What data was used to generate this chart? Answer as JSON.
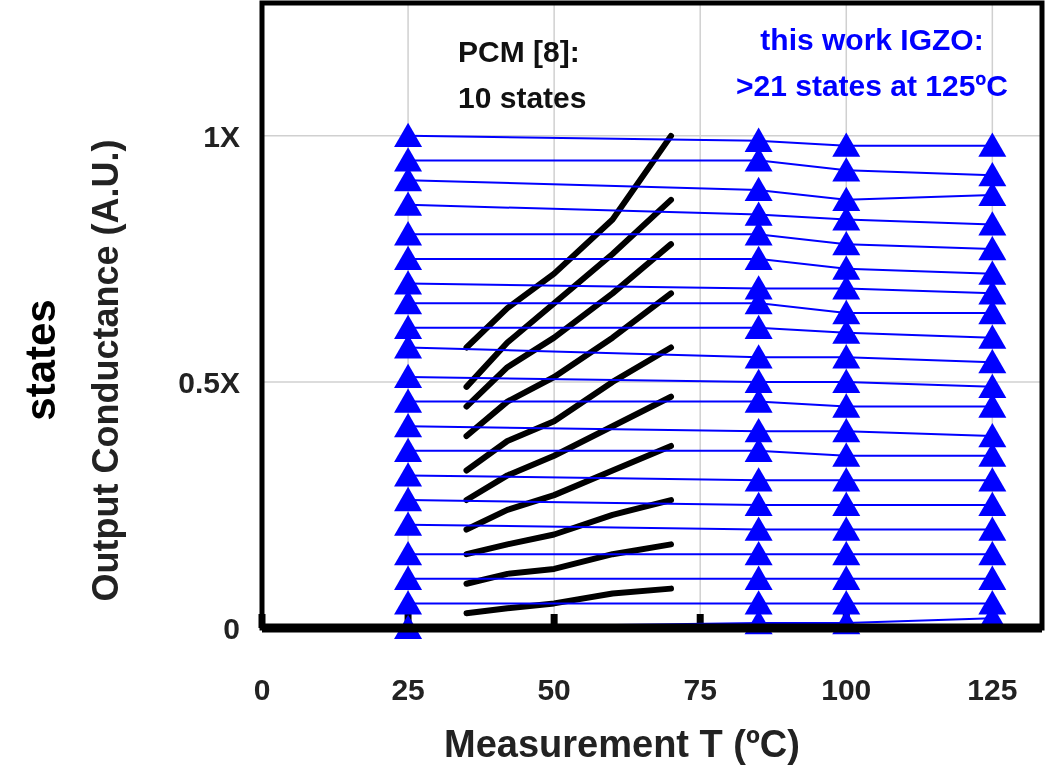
{
  "chart_data": {
    "type": "line",
    "xlabel": "Measurement T (ºC)",
    "ylabel": "Output Conductance (A.U.)",
    "annotations": [
      "PCM [8]:\n10 states",
      "this work IGZO:\n>21 states at 125ºC",
      "states"
    ],
    "xlim": [
      0,
      133.5
    ],
    "xticks": [
      0,
      25,
      50,
      75,
      100,
      125
    ],
    "ylim": [
      0,
      1.27
    ],
    "yticks": [
      0,
      {
        "value": 0.5,
        "label": "0.5X"
      },
      {
        "value": 1,
        "label": "1X"
      }
    ],
    "grid": true,
    "x": [
      25,
      85,
      100,
      125
    ],
    "series": [
      {
        "marker": "triangle",
        "color": "#0000ff",
        "values": [
          1.0,
          0.99,
          0.98,
          0.98
        ]
      },
      {
        "marker": "triangle",
        "color": "#0000ff",
        "values": [
          0.95,
          0.95,
          0.93,
          0.92
        ]
      },
      {
        "marker": "triangle",
        "color": "#0000ff",
        "values": [
          0.91,
          0.89,
          0.87,
          0.88
        ]
      },
      {
        "marker": "triangle",
        "color": "#0000ff",
        "values": [
          0.86,
          0.84,
          0.83,
          0.82
        ]
      },
      {
        "marker": "triangle",
        "color": "#0000ff",
        "values": [
          0.8,
          0.8,
          0.78,
          0.77
        ]
      },
      {
        "marker": "triangle",
        "color": "#0000ff",
        "values": [
          0.75,
          0.75,
          0.73,
          0.72
        ]
      },
      {
        "marker": "triangle",
        "color": "#0000ff",
        "values": [
          0.7,
          0.69,
          0.69,
          0.68
        ]
      },
      {
        "marker": "triangle",
        "color": "#0000ff",
        "values": [
          0.66,
          0.66,
          0.64,
          0.64
        ]
      },
      {
        "marker": "triangle",
        "color": "#0000ff",
        "values": [
          0.61,
          0.61,
          0.6,
          0.59
        ]
      },
      {
        "marker": "triangle",
        "color": "#0000ff",
        "values": [
          0.57,
          0.55,
          0.55,
          0.54
        ]
      },
      {
        "marker": "triangle",
        "color": "#0000ff",
        "values": [
          0.51,
          0.5,
          0.5,
          0.49
        ]
      },
      {
        "marker": "triangle",
        "color": "#0000ff",
        "values": [
          0.46,
          0.46,
          0.45,
          0.45
        ]
      },
      {
        "marker": "triangle",
        "color": "#0000ff",
        "values": [
          0.41,
          0.4,
          0.4,
          0.39
        ]
      },
      {
        "marker": "triangle",
        "color": "#0000ff",
        "values": [
          0.36,
          0.36,
          0.35,
          0.35
        ]
      },
      {
        "marker": "triangle",
        "color": "#0000ff",
        "values": [
          0.31,
          0.3,
          0.3,
          0.3
        ]
      },
      {
        "marker": "triangle",
        "color": "#0000ff",
        "values": [
          0.26,
          0.25,
          0.25,
          0.25
        ]
      },
      {
        "marker": "triangle",
        "color": "#0000ff",
        "values": [
          0.21,
          0.2,
          0.2,
          0.2
        ]
      },
      {
        "marker": "triangle",
        "color": "#0000ff",
        "values": [
          0.15,
          0.15,
          0.15,
          0.15
        ]
      },
      {
        "marker": "triangle",
        "color": "#0000ff",
        "values": [
          0.1,
          0.1,
          0.1,
          0.1
        ]
      },
      {
        "marker": "triangle",
        "color": "#0000ff",
        "values": [
          0.05,
          0.05,
          0.05,
          0.05
        ]
      },
      {
        "marker": "triangle",
        "color": "#0000ff",
        "values": [
          0.0,
          0.01,
          0.01,
          0.02
        ]
      },
      {
        "marker": "none",
        "color": "#000000",
        "x": [
          35,
          42,
          50,
          60,
          70
        ],
        "values": [
          0.57,
          0.65,
          0.72,
          0.83,
          1.0
        ]
      },
      {
        "marker": "none",
        "color": "#000000",
        "x": [
          35,
          42,
          50,
          60,
          70
        ],
        "values": [
          0.49,
          0.58,
          0.66,
          0.76,
          0.87
        ]
      },
      {
        "marker": "none",
        "color": "#000000",
        "x": [
          35,
          42,
          50,
          60,
          70
        ],
        "values": [
          0.45,
          0.53,
          0.59,
          0.68,
          0.78
        ]
      },
      {
        "marker": "none",
        "color": "#000000",
        "x": [
          35,
          42,
          50,
          60,
          70
        ],
        "values": [
          0.39,
          0.46,
          0.51,
          0.59,
          0.68
        ]
      },
      {
        "marker": "none",
        "color": "#000000",
        "x": [
          35,
          42,
          50,
          60,
          70
        ],
        "values": [
          0.32,
          0.38,
          0.42,
          0.5,
          0.57
        ]
      },
      {
        "marker": "none",
        "color": "#000000",
        "x": [
          35,
          42,
          50,
          60,
          70
        ],
        "values": [
          0.26,
          0.31,
          0.35,
          0.41,
          0.47
        ]
      },
      {
        "marker": "none",
        "color": "#000000",
        "x": [
          35,
          42,
          50,
          60,
          70
        ],
        "values": [
          0.2,
          0.24,
          0.27,
          0.32,
          0.37
        ]
      },
      {
        "marker": "none",
        "color": "#000000",
        "x": [
          35,
          42,
          50,
          60,
          70
        ],
        "values": [
          0.15,
          0.17,
          0.19,
          0.23,
          0.26
        ]
      },
      {
        "marker": "none",
        "color": "#000000",
        "x": [
          35,
          42,
          50,
          60,
          70
        ],
        "values": [
          0.09,
          0.11,
          0.12,
          0.15,
          0.17
        ]
      },
      {
        "marker": "none",
        "color": "#000000",
        "x": [
          35,
          42,
          50,
          60,
          70
        ],
        "values": [
          0.03,
          0.04,
          0.05,
          0.07,
          0.08
        ]
      }
    ]
  }
}
